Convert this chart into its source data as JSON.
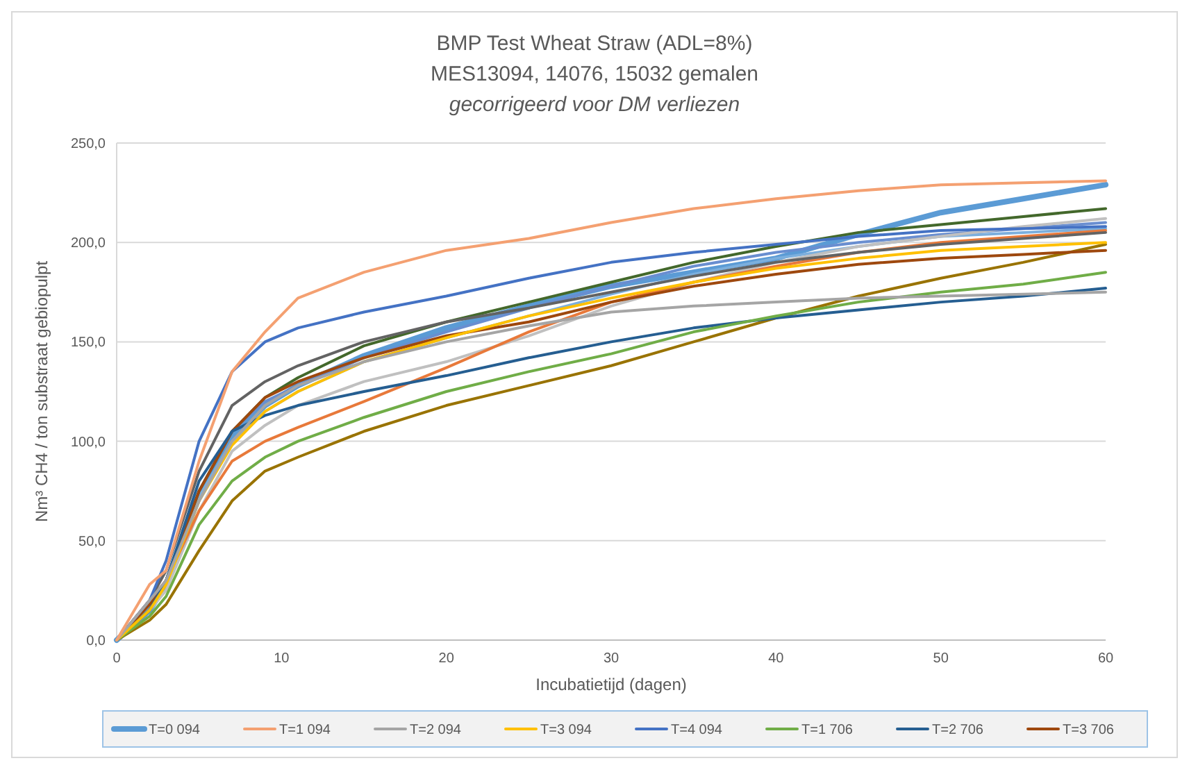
{
  "chart_data": {
    "type": "line",
    "title": "BMP Test Wheat Straw (ADL=8%)",
    "subtitle": "MES13094, 14076, 15032 gemalen",
    "annotations": [
      "gecorrigeerd voor DM verliezen"
    ],
    "xlabel": "Incubatietijd (dagen)",
    "ylabel": "Nm³ CH4  / ton substraat gebiopulpt",
    "x": [
      0,
      2,
      3,
      5,
      7,
      9,
      11,
      15,
      20,
      25,
      30,
      35,
      40,
      45,
      50,
      55,
      60
    ],
    "xlim": [
      0,
      60
    ],
    "xticks": [
      0,
      10,
      20,
      30,
      40,
      50,
      60
    ],
    "ylim": [
      0,
      250
    ],
    "yticks": [
      {
        "value": 0,
        "label": "0,0"
      },
      {
        "value": 50,
        "label": "50,0"
      },
      {
        "value": 100,
        "label": "100,0"
      },
      {
        "value": 150,
        "label": "150,0"
      },
      {
        "value": 200,
        "label": "200,0"
      },
      {
        "value": 250,
        "label": "250,0"
      }
    ],
    "grid": "y",
    "legend": "bottom",
    "marker": "none",
    "line_style": "solid",
    "series": [
      {
        "name": "T=0 094",
        "color": "#5b9bd5",
        "values": [
          0,
          15,
          28,
          72,
          102,
          118,
          128,
          143,
          157,
          168,
          178,
          185,
          192,
          204,
          215,
          222,
          229
        ]
      },
      {
        "name": "T=1 094",
        "color": "#f4a071",
        "values": [
          0,
          28,
          35,
          90,
          135,
          155,
          172,
          185,
          196,
          202,
          210,
          217,
          222,
          226,
          229,
          230,
          231
        ]
      },
      {
        "name": "T=2 094",
        "color": "#a5a5a5",
        "values": [
          0,
          20,
          30,
          70,
          100,
          118,
          128,
          140,
          150,
          158,
          165,
          168,
          170,
          172,
          173,
          174,
          175
        ]
      },
      {
        "name": "T=3 094",
        "color": "#ffc000",
        "values": [
          0,
          15,
          28,
          70,
          98,
          115,
          125,
          140,
          152,
          163,
          172,
          180,
          187,
          192,
          196,
          198,
          200
        ]
      },
      {
        "name": "T=4 094",
        "color": "#4472c4",
        "values": [
          0,
          20,
          40,
          100,
          135,
          150,
          157,
          165,
          173,
          182,
          190,
          195,
          199,
          203,
          206,
          207,
          208
        ]
      },
      {
        "name": "T=1 706",
        "color": "#70ad47",
        "values": [
          0,
          12,
          22,
          58,
          80,
          92,
          100,
          112,
          125,
          135,
          144,
          155,
          163,
          170,
          175,
          179,
          185
        ]
      },
      {
        "name": "T=2 706",
        "color": "#255e91",
        "values": [
          0,
          15,
          30,
          80,
          105,
          113,
          118,
          125,
          133,
          142,
          150,
          157,
          162,
          166,
          170,
          173,
          177
        ]
      },
      {
        "name": "T=3 706",
        "color": "#9e480e",
        "values": [
          0,
          18,
          30,
          75,
          105,
          122,
          130,
          142,
          153,
          160,
          170,
          178,
          184,
          189,
          192,
          194,
          196
        ]
      },
      {
        "color": "#636363",
        "values": [
          0,
          20,
          35,
          85,
          118,
          130,
          138,
          150,
          160,
          167,
          175,
          183,
          190,
          195,
          199,
          202,
          205
        ]
      },
      {
        "color": "#43682b",
        "values": [
          0,
          15,
          30,
          75,
          105,
          122,
          132,
          148,
          160,
          170,
          180,
          190,
          198,
          205,
          209,
          213,
          217
        ]
      },
      {
        "color": "#997300",
        "values": [
          0,
          10,
          18,
          45,
          70,
          85,
          92,
          105,
          118,
          128,
          138,
          150,
          162,
          173,
          182,
          190,
          199
        ]
      },
      {
        "color": "#e8793a",
        "values": [
          0,
          20,
          30,
          65,
          90,
          100,
          107,
          120,
          137,
          155,
          170,
          180,
          188,
          195,
          200,
          203,
          206
        ]
      },
      {
        "color": "#c0c0c0",
        "values": [
          0,
          15,
          25,
          65,
          95,
          108,
          118,
          130,
          140,
          153,
          168,
          180,
          190,
          198,
          203,
          208,
          212
        ]
      },
      {
        "color": "#698ed0",
        "values": [
          0,
          15,
          30,
          75,
          105,
          120,
          128,
          142,
          155,
          167,
          178,
          188,
          195,
          200,
          204,
          207,
          210
        ]
      },
      {
        "color": "#7cafdd",
        "values": [
          0,
          15,
          28,
          72,
          100,
          115,
          125,
          140,
          152,
          163,
          174,
          184,
          192,
          198,
          203,
          205,
          207
        ]
      }
    ]
  }
}
